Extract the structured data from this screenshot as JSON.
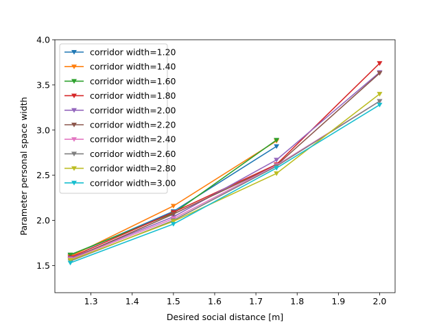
{
  "chart_data": {
    "type": "line",
    "title": "",
    "xlabel": "Desired social distance [m]",
    "ylabel": "Parameter personal space width",
    "xlim": [
      1.2125,
      2.0375
    ],
    "ylim": [
      1.2,
      4.0
    ],
    "xticks": [
      "1.3",
      "1.4",
      "1.5",
      "1.6",
      "1.7",
      "1.8",
      "1.9",
      "2.0"
    ],
    "xtick_values": [
      1.3,
      1.4,
      1.5,
      1.6,
      1.7,
      1.8,
      1.9,
      2.0
    ],
    "yticks": [
      "1.5",
      "2.0",
      "2.5",
      "3.0",
      "3.5",
      "4.0"
    ],
    "ytick_values": [
      1.5,
      2.0,
      2.5,
      3.0,
      3.5,
      4.0
    ],
    "legend_position": "upper-left",
    "marker": "triangle-down",
    "x": [
      1.25,
      1.5,
      1.75,
      2.0
    ],
    "series": [
      {
        "name": "corridor width=1.20",
        "color": "#1f77b4",
        "values": [
          1.61,
          2.1,
          2.82,
          null
        ]
      },
      {
        "name": "corridor width=1.40",
        "color": "#ff7f0e",
        "values": [
          1.6,
          2.16,
          2.88,
          null
        ]
      },
      {
        "name": "corridor width=1.60",
        "color": "#2ca02c",
        "values": [
          1.62,
          2.08,
          2.89,
          null
        ]
      },
      {
        "name": "corridor width=1.80",
        "color": "#d62728",
        "values": [
          1.59,
          2.09,
          2.62,
          3.74
        ]
      },
      {
        "name": "corridor width=2.00",
        "color": "#9467bd",
        "values": [
          1.58,
          2.04,
          2.67,
          3.64
        ]
      },
      {
        "name": "corridor width=2.20",
        "color": "#8c564b",
        "values": [
          1.57,
          2.07,
          2.61,
          3.63
        ]
      },
      {
        "name": "corridor width=2.40",
        "color": "#e377c2",
        "values": [
          1.57,
          2.02,
          2.61,
          3.32
        ]
      },
      {
        "name": "corridor width=2.60",
        "color": "#7f7f7f",
        "values": [
          1.55,
          2.0,
          2.6,
          3.32
        ]
      },
      {
        "name": "corridor width=2.80",
        "color": "#bcbd22",
        "values": [
          1.56,
          1.99,
          2.52,
          3.4
        ]
      },
      {
        "name": "corridor width=3.00",
        "color": "#17becf",
        "values": [
          1.53,
          1.96,
          2.58,
          3.28
        ]
      }
    ]
  }
}
